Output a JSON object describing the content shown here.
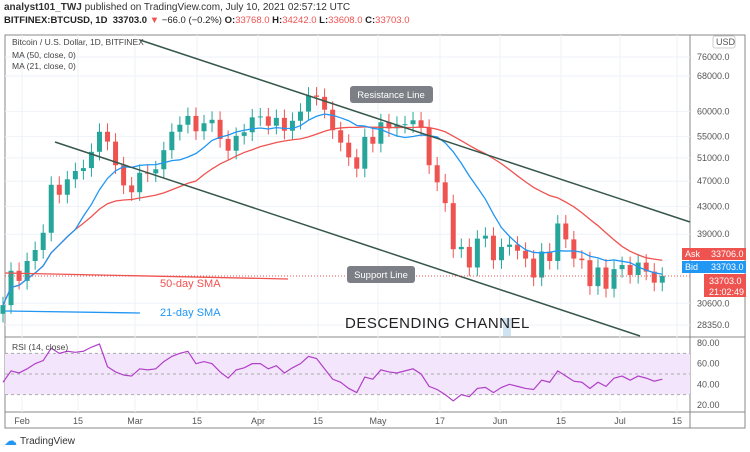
{
  "header": {
    "author": "analyst101_TWJ",
    "published": "published on TradingView.com, July 10, 2021 02:57:12 UTC",
    "symbol": "BITFINEX:BTCUSD, 1D",
    "last": "33703.0",
    "change": "−66.0 (−0.2%)",
    "o": "33768.0",
    "h": "34242.0",
    "l": "33608.0",
    "c": "33703.0"
  },
  "legend": {
    "title": "Bitcoin / U.S. Dollar, 1D, BITFINEX",
    "ma50": "MA (50, close, 0)",
    "ma21": "MA (21, close, 0)",
    "rsi": "RSI (14, close)"
  },
  "price_axis": {
    "currency": "USD",
    "ticks": [
      "76000.0",
      "68000.0",
      "60000.0",
      "55000.0",
      "51000.0",
      "47000.0",
      "43000.0",
      "39000.0",
      "30600.0",
      "28350.0"
    ],
    "ask_label": "Ask",
    "ask": "33706.0",
    "bid_label": "Bid",
    "bid": "33703.0",
    "last": "33703.0",
    "countdown": "21:02:49"
  },
  "rsi_axis": {
    "ticks": [
      "80.00",
      "60.00",
      "40.00",
      "20.00"
    ]
  },
  "time_axis": {
    "ticks": [
      "Feb",
      "15",
      "Mar",
      "15",
      "Apr",
      "15",
      "May",
      "17",
      "Jun",
      "15",
      "Jul",
      "15"
    ]
  },
  "annotations": {
    "resistance": "Resistance Line",
    "support": "Support Line",
    "sma50": "50-day SMA",
    "sma21": "21-day SMA",
    "channel": "DESCENDING CHANNEL"
  },
  "brand": "TradingView",
  "colors": {
    "up": "#26a69a",
    "down": "#ef5350",
    "ma50": "#ef5350",
    "ma21": "#2196f3",
    "rsi": "#b040c8",
    "trend": "#37574a"
  },
  "chart_data": {
    "type": "candlestick",
    "scale": "log",
    "interval": "2 days",
    "start": "2021-01-27",
    "closes": [
      30400,
      34300,
      33100,
      35500,
      36900,
      39200,
      46400,
      44800,
      47300,
      48700,
      49200,
      52100,
      55900,
      54000,
      49700,
      46300,
      45200,
      48400,
      48300,
      49000,
      52400,
      55900,
      57300,
      59100,
      56000,
      57600,
      58300,
      54500,
      52300,
      55100,
      55800,
      58800,
      59000,
      57100,
      58700,
      56100,
      58100,
      60000,
      63500,
      63200,
      60400,
      56200,
      53800,
      51100,
      49100,
      54900,
      53600,
      57800,
      56600,
      57300,
      57400,
      58200,
      56700,
      49700,
      46800,
      43500,
      37000,
      37300,
      34700,
      38400,
      38800,
      35600,
      37300,
      37600,
      36800,
      35800,
      33500,
      36700,
      35500,
      40500,
      38300,
      35800,
      35600,
      32500,
      34700,
      32200,
      34500,
      35000,
      33800,
      35300,
      34200,
      32900,
      33703
    ],
    "rsi": [
      42,
      53,
      51,
      55,
      60,
      63,
      75,
      70,
      72,
      71,
      72,
      76,
      79,
      57,
      52,
      49,
      48,
      55,
      54,
      55,
      62,
      67,
      70,
      72,
      60,
      62,
      60,
      52,
      46,
      54,
      56,
      60,
      60,
      55,
      58,
      51,
      56,
      60,
      67,
      65,
      55,
      45,
      42,
      36,
      32,
      47,
      45,
      54,
      52,
      51,
      53,
      55,
      50,
      38,
      35,
      30,
      24,
      30,
      28,
      36,
      37,
      32,
      37,
      40,
      38,
      36,
      35,
      44,
      42,
      53,
      48,
      43,
      42,
      36,
      42,
      38,
      46,
      48,
      44,
      48,
      46,
      43,
      45
    ],
    "rsi_levels": [
      70,
      50,
      30
    ],
    "ylim": [
      28350,
      76000
    ]
  }
}
